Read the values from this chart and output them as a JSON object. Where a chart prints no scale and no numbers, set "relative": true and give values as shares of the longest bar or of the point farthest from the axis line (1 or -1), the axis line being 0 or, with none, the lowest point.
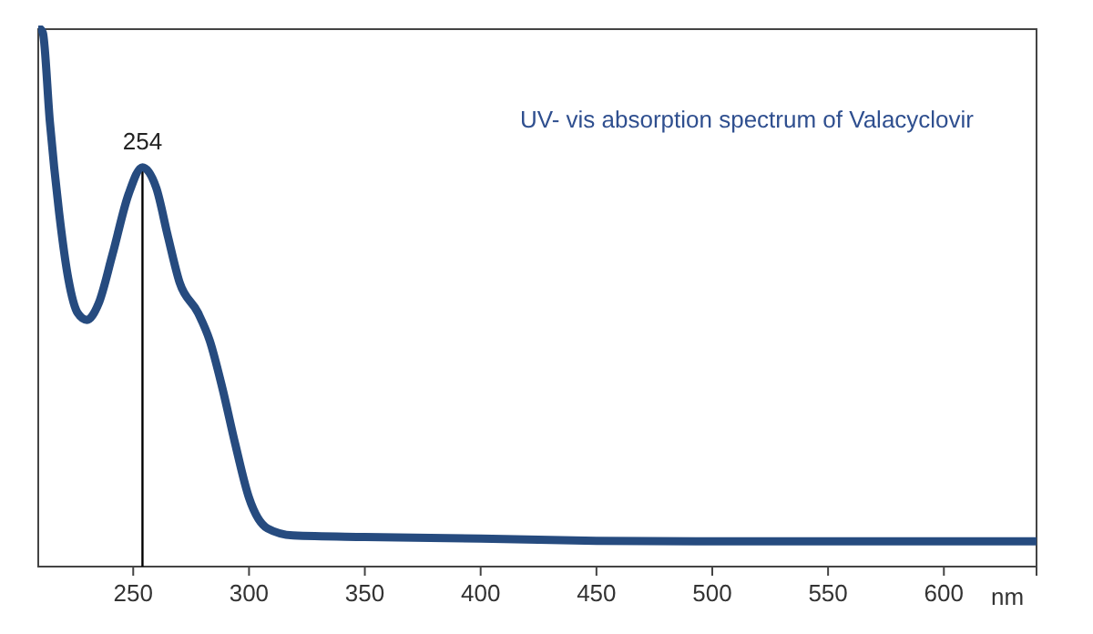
{
  "chart_data": {
    "type": "line",
    "relative": true,
    "xlabel": "nm",
    "annotations": [
      "UV- vis absorption spectrum of Valacyclovir"
    ],
    "xlim": [
      209,
      640
    ],
    "xticks": [
      250,
      300,
      350,
      400,
      450,
      500,
      550,
      600,
      {
        "value": 640,
        "label": null
      }
    ],
    "grid": false,
    "line_style": "solid",
    "ref_lines": [
      {
        "axis": "x",
        "value": 254,
        "label": "254",
        "color": "#000000"
      }
    ],
    "series": [
      {
        "color": "#264b7f",
        "x": [
          210,
          211,
          214,
          218,
          222,
          226,
          230,
          235,
          241,
          248,
          254,
          260,
          265,
          270,
          278,
          283,
          288.5,
          294,
          300,
          308,
          319,
          350,
          400,
          450,
          500,
          550,
          600,
          640
        ],
        "values": [
          1.0,
          0.993,
          0.828,
          0.659,
          0.535,
          0.472,
          0.459,
          0.489,
          0.58,
          0.693,
          0.743,
          0.704,
          0.614,
          0.529,
          0.472,
          0.421,
          0.332,
          0.229,
          0.128,
          0.071,
          0.058,
          0.055,
          0.052,
          0.048,
          0.047,
          0.047,
          0.047,
          0.047
        ]
      }
    ]
  }
}
